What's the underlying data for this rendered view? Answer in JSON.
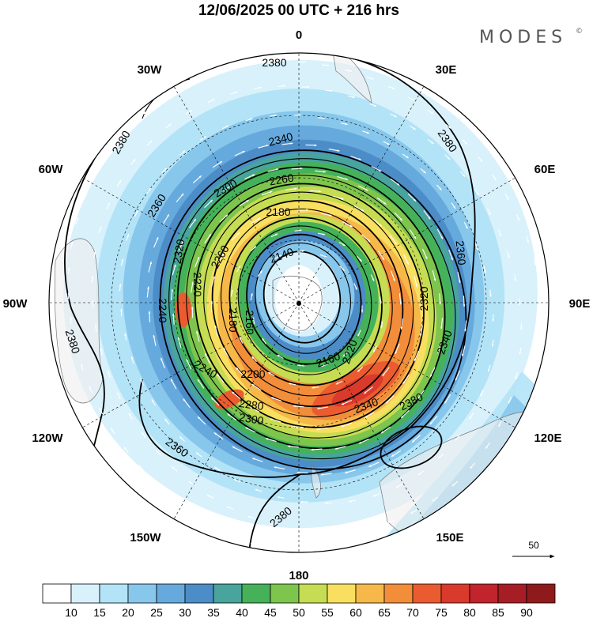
{
  "title": "12/06/2025  00 UTC  + 216 hrs",
  "brand": {
    "name": "MODES",
    "mark": "©"
  },
  "longitude_labels": [
    {
      "id": "0",
      "text": "0"
    },
    {
      "id": "30E",
      "text": "30E"
    },
    {
      "id": "60E",
      "text": "60E"
    },
    {
      "id": "90E",
      "text": "90E"
    },
    {
      "id": "120E",
      "text": "120E"
    },
    {
      "id": "150E",
      "text": "150E"
    },
    {
      "id": "180",
      "text": "180"
    },
    {
      "id": "150W",
      "text": "150W"
    },
    {
      "id": "120W",
      "text": "120W"
    },
    {
      "id": "90W",
      "text": "90W"
    },
    {
      "id": "60W",
      "text": "60W"
    },
    {
      "id": "30W",
      "text": "30W"
    }
  ],
  "wind_reference": {
    "value": "50",
    "icon": "arrow-right-icon"
  },
  "colorbar": {
    "colors": [
      "#ffffff",
      "#d9f1fb",
      "#b3e3f7",
      "#88c7ec",
      "#66a9dd",
      "#4c8dc8",
      "#48a49c",
      "#45b25a",
      "#7ec54d",
      "#c5dc53",
      "#f9df5f",
      "#f7b84a",
      "#f28d3a",
      "#ea5c30",
      "#d93a2c",
      "#c1242c",
      "#a71d25",
      "#8f1a1c"
    ],
    "labels": [
      "10",
      "15",
      "20",
      "25",
      "30",
      "35",
      "40",
      "45",
      "50",
      "55",
      "60",
      "65",
      "70",
      "75",
      "80",
      "85",
      "90"
    ]
  },
  "chart_data": {
    "type": "contour",
    "projection": "south polar stereographic",
    "field_shaded": "wind speed",
    "field_contour": "geopotential height",
    "contour_levels": [
      2140,
      2160,
      2180,
      2200,
      2220,
      2240,
      2260,
      2280,
      2300,
      2320,
      2340,
      2360,
      2380
    ],
    "contour_labels": [
      "2380",
      "2380",
      "2380",
      "2380",
      "2380",
      "2380",
      "2360",
      "2360",
      "2360",
      "2340",
      "2340",
      "2340",
      "2320",
      "2320",
      "2300",
      "2300",
      "2280",
      "2260",
      "2260",
      "2240",
      "2240",
      "2220",
      "2220",
      "2200",
      "2180",
      "2180",
      "2160",
      "2160",
      "2140"
    ],
    "speed_bands": [
      10,
      15,
      20,
      25,
      30,
      35,
      40,
      45,
      50,
      55,
      60,
      65,
      70,
      75,
      80,
      85,
      90
    ]
  }
}
